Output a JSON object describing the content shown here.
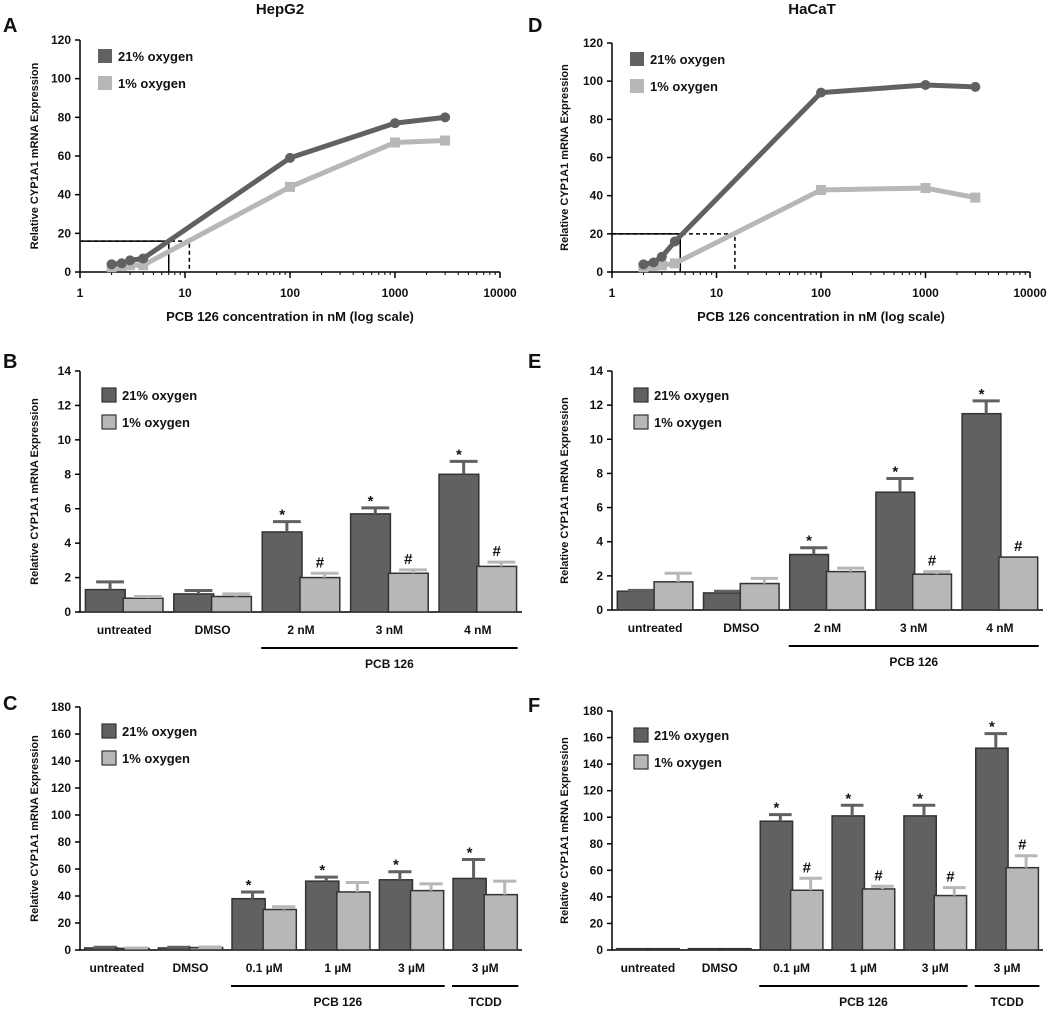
{
  "column_titles": [
    "HepG2",
    "HaCaT"
  ],
  "colors": {
    "o21": "#616161",
    "o1": "#b7b7b7",
    "axis": "#000000"
  },
  "legend": {
    "o21": "21% oxygen",
    "o1": "1% oxygen"
  },
  "ylabel": "Relative CYP1A1 mRNA Expression",
  "chart_data": [
    {
      "panel": "A",
      "cell": "HepG2",
      "type": "line",
      "xscale": "log",
      "xlim": [
        1,
        10000
      ],
      "ylim": [
        0,
        120
      ],
      "xticks": [
        "1",
        "10",
        "100",
        "1000",
        "10000"
      ],
      "yticks": [
        "0",
        "20",
        "40",
        "60",
        "80",
        "100",
        "120"
      ],
      "xlabel": "PCB 126 concentration in nM (log scale)",
      "series": [
        {
          "key": "o21",
          "name": "21% oxygen",
          "marker": "circle",
          "x": [
            2,
            2.5,
            3,
            4,
            100,
            1000,
            3000
          ],
          "y": [
            4,
            4.5,
            6,
            7,
            59,
            77,
            80
          ]
        },
        {
          "key": "o1",
          "name": "1% oxygen",
          "marker": "square",
          "x": [
            2,
            2.5,
            3,
            4,
            100,
            1000,
            3000
          ],
          "y": [
            2.5,
            3,
            3.5,
            3.5,
            44,
            67,
            68
          ]
        }
      ],
      "guides": [
        {
          "style": "solid",
          "x": 7,
          "y": 16
        },
        {
          "style": "dashed",
          "x": 11,
          "y": 16
        }
      ]
    },
    {
      "panel": "D",
      "cell": "HaCaT",
      "type": "line",
      "xscale": "log",
      "xlim": [
        1,
        10000
      ],
      "ylim": [
        0,
        120
      ],
      "xticks": [
        "1",
        "10",
        "100",
        "1000",
        "10000"
      ],
      "yticks": [
        "0",
        "20",
        "40",
        "60",
        "80",
        "100",
        "120"
      ],
      "xlabel": "PCB 126 concentration in nM (log scale)",
      "series": [
        {
          "key": "o21",
          "name": "21% oxygen",
          "marker": "circle",
          "x": [
            2,
            2.5,
            3,
            4,
            100,
            1000,
            3000
          ],
          "y": [
            4,
            5,
            8,
            16,
            94,
            98,
            97
          ]
        },
        {
          "key": "o1",
          "name": "1% oxygen",
          "marker": "square",
          "x": [
            2,
            2.5,
            3,
            4,
            100,
            1000,
            3000
          ],
          "y": [
            2.5,
            3,
            3.5,
            4.5,
            43,
            44,
            39
          ]
        }
      ],
      "guides": [
        {
          "style": "solid",
          "x": 4.5,
          "y": 20
        },
        {
          "style": "dashed",
          "x": 15,
          "y": 20
        }
      ]
    },
    {
      "panel": "B",
      "cell": "HepG2",
      "type": "bar",
      "ylim": [
        0,
        14
      ],
      "yticks": [
        "0",
        "2",
        "4",
        "6",
        "8",
        "10",
        "12",
        "14"
      ],
      "categories": [
        "untreated",
        "DMSO",
        "2 nM",
        "3 nM",
        "4 nM"
      ],
      "series": [
        {
          "key": "o21",
          "name": "21% oxygen",
          "values": [
            1.3,
            1.05,
            4.65,
            5.7,
            8.0
          ],
          "errors": [
            0.45,
            0.2,
            0.6,
            0.35,
            0.75
          ],
          "marks": [
            "",
            "",
            "*",
            "*",
            "*"
          ]
        },
        {
          "key": "o1",
          "name": "1% oxygen",
          "values": [
            0.8,
            0.9,
            2.0,
            2.25,
            2.65
          ],
          "errors": [
            0.1,
            0.15,
            0.25,
            0.2,
            0.25
          ],
          "marks": [
            "",
            "",
            "#",
            "#",
            "#"
          ]
        }
      ],
      "groups": [
        {
          "label": "PCB 126",
          "from": 2,
          "to": 4
        }
      ]
    },
    {
      "panel": "E",
      "cell": "HaCaT",
      "type": "bar",
      "ylim": [
        0,
        14
      ],
      "yticks": [
        "0",
        "2",
        "4",
        "6",
        "8",
        "10",
        "12",
        "14"
      ],
      "categories": [
        "untreated",
        "DMSO",
        "2 nM",
        "3 nM",
        "4 nM"
      ],
      "series": [
        {
          "key": "o21",
          "name": "21% oxygen",
          "values": [
            1.1,
            1.0,
            3.25,
            6.9,
            11.5
          ],
          "errors": [
            0.05,
            0.1,
            0.4,
            0.8,
            0.75
          ],
          "marks": [
            "",
            "",
            "*",
            "*",
            "*"
          ]
        },
        {
          "key": "o1",
          "name": "1% oxygen",
          "values": [
            1.65,
            1.55,
            2.25,
            2.1,
            3.1
          ],
          "errors": [
            0.5,
            0.3,
            0.2,
            0.15,
            0
          ],
          "marks": [
            "",
            "",
            "",
            "#",
            "#"
          ]
        }
      ],
      "groups": [
        {
          "label": "PCB 126",
          "from": 2,
          "to": 4
        }
      ]
    },
    {
      "panel": "C",
      "cell": "HepG2",
      "type": "bar",
      "ylim": [
        0,
        180
      ],
      "yticks": [
        "0",
        "20",
        "40",
        "60",
        "80",
        "100",
        "120",
        "140",
        "160",
        "180"
      ],
      "categories": [
        "untreated",
        "DMSO",
        "0.1 µM",
        "1 µM",
        "3 µM",
        "3 µM"
      ],
      "series": [
        {
          "key": "o21",
          "name": "21% oxygen",
          "values": [
            1.5,
            1.5,
            38,
            51,
            52,
            53
          ],
          "errors": [
            0.5,
            0.5,
            5,
            3,
            6,
            14
          ],
          "marks": [
            "",
            "",
            "*",
            "*",
            "*",
            "*"
          ]
        },
        {
          "key": "o1",
          "name": "1% oxygen",
          "values": [
            1.2,
            1.8,
            30,
            43,
            44,
            41
          ],
          "errors": [
            0.3,
            0.4,
            2,
            7,
            5,
            10
          ],
          "marks": [
            "",
            "",
            "",
            "",
            "",
            ""
          ]
        }
      ],
      "groups": [
        {
          "label": "PCB 126",
          "from": 2,
          "to": 4
        },
        {
          "label": "TCDD",
          "from": 5,
          "to": 5
        }
      ]
    },
    {
      "panel": "F",
      "cell": "HaCaT",
      "type": "bar",
      "ylim": [
        0,
        180
      ],
      "yticks": [
        "0",
        "20",
        "40",
        "60",
        "80",
        "100",
        "120",
        "140",
        "160",
        "180"
      ],
      "categories": [
        "untreated",
        "DMSO",
        "0.1 µM",
        "1 µM",
        "3 µM",
        "3 µM"
      ],
      "series": [
        {
          "key": "o21",
          "name": "21% oxygen",
          "values": [
            1,
            1,
            97,
            101,
            101,
            152
          ],
          "errors": [
            0,
            0,
            5,
            8,
            8,
            11
          ],
          "marks": [
            "",
            "",
            "*",
            "*",
            "*",
            "*"
          ]
        },
        {
          "key": "o1",
          "name": "1% oxygen",
          "values": [
            1,
            1,
            45,
            46,
            41,
            62
          ],
          "errors": [
            0,
            0,
            9,
            2,
            6,
            9
          ],
          "marks": [
            "",
            "",
            "#",
            "#",
            "#",
            "#"
          ]
        }
      ],
      "groups": [
        {
          "label": "PCB 126",
          "from": 2,
          "to": 4
        },
        {
          "label": "TCDD",
          "from": 5,
          "to": 5
        }
      ]
    }
  ]
}
